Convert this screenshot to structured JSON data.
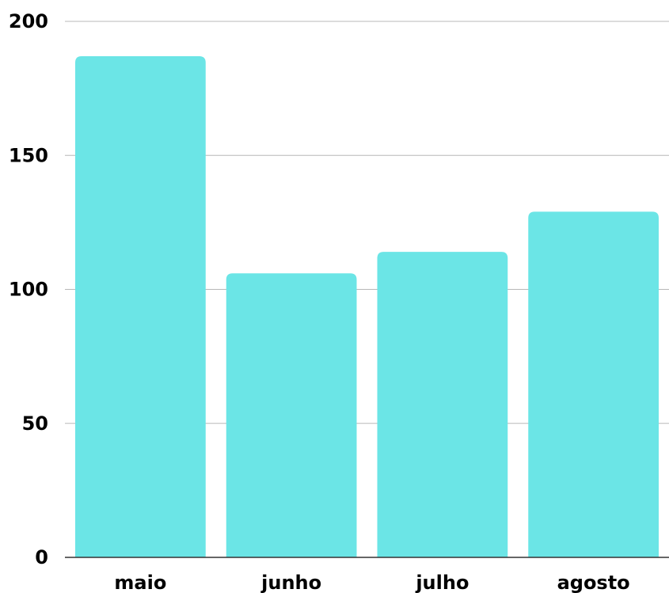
{
  "chart_data": {
    "type": "bar",
    "categories": [
      "maio",
      "junho",
      "julho",
      "agosto"
    ],
    "values": [
      187,
      106,
      114,
      129
    ],
    "ylim": [
      0,
      200
    ],
    "yticks": [
      0,
      50,
      100,
      150,
      200
    ],
    "grid": true,
    "legend": "none",
    "title": "",
    "xlabel": "",
    "ylabel": "",
    "colors": {
      "bar": "#6be5e6",
      "grid": "#b8b8b8",
      "baseline": "#333333",
      "text": "#000000"
    }
  }
}
